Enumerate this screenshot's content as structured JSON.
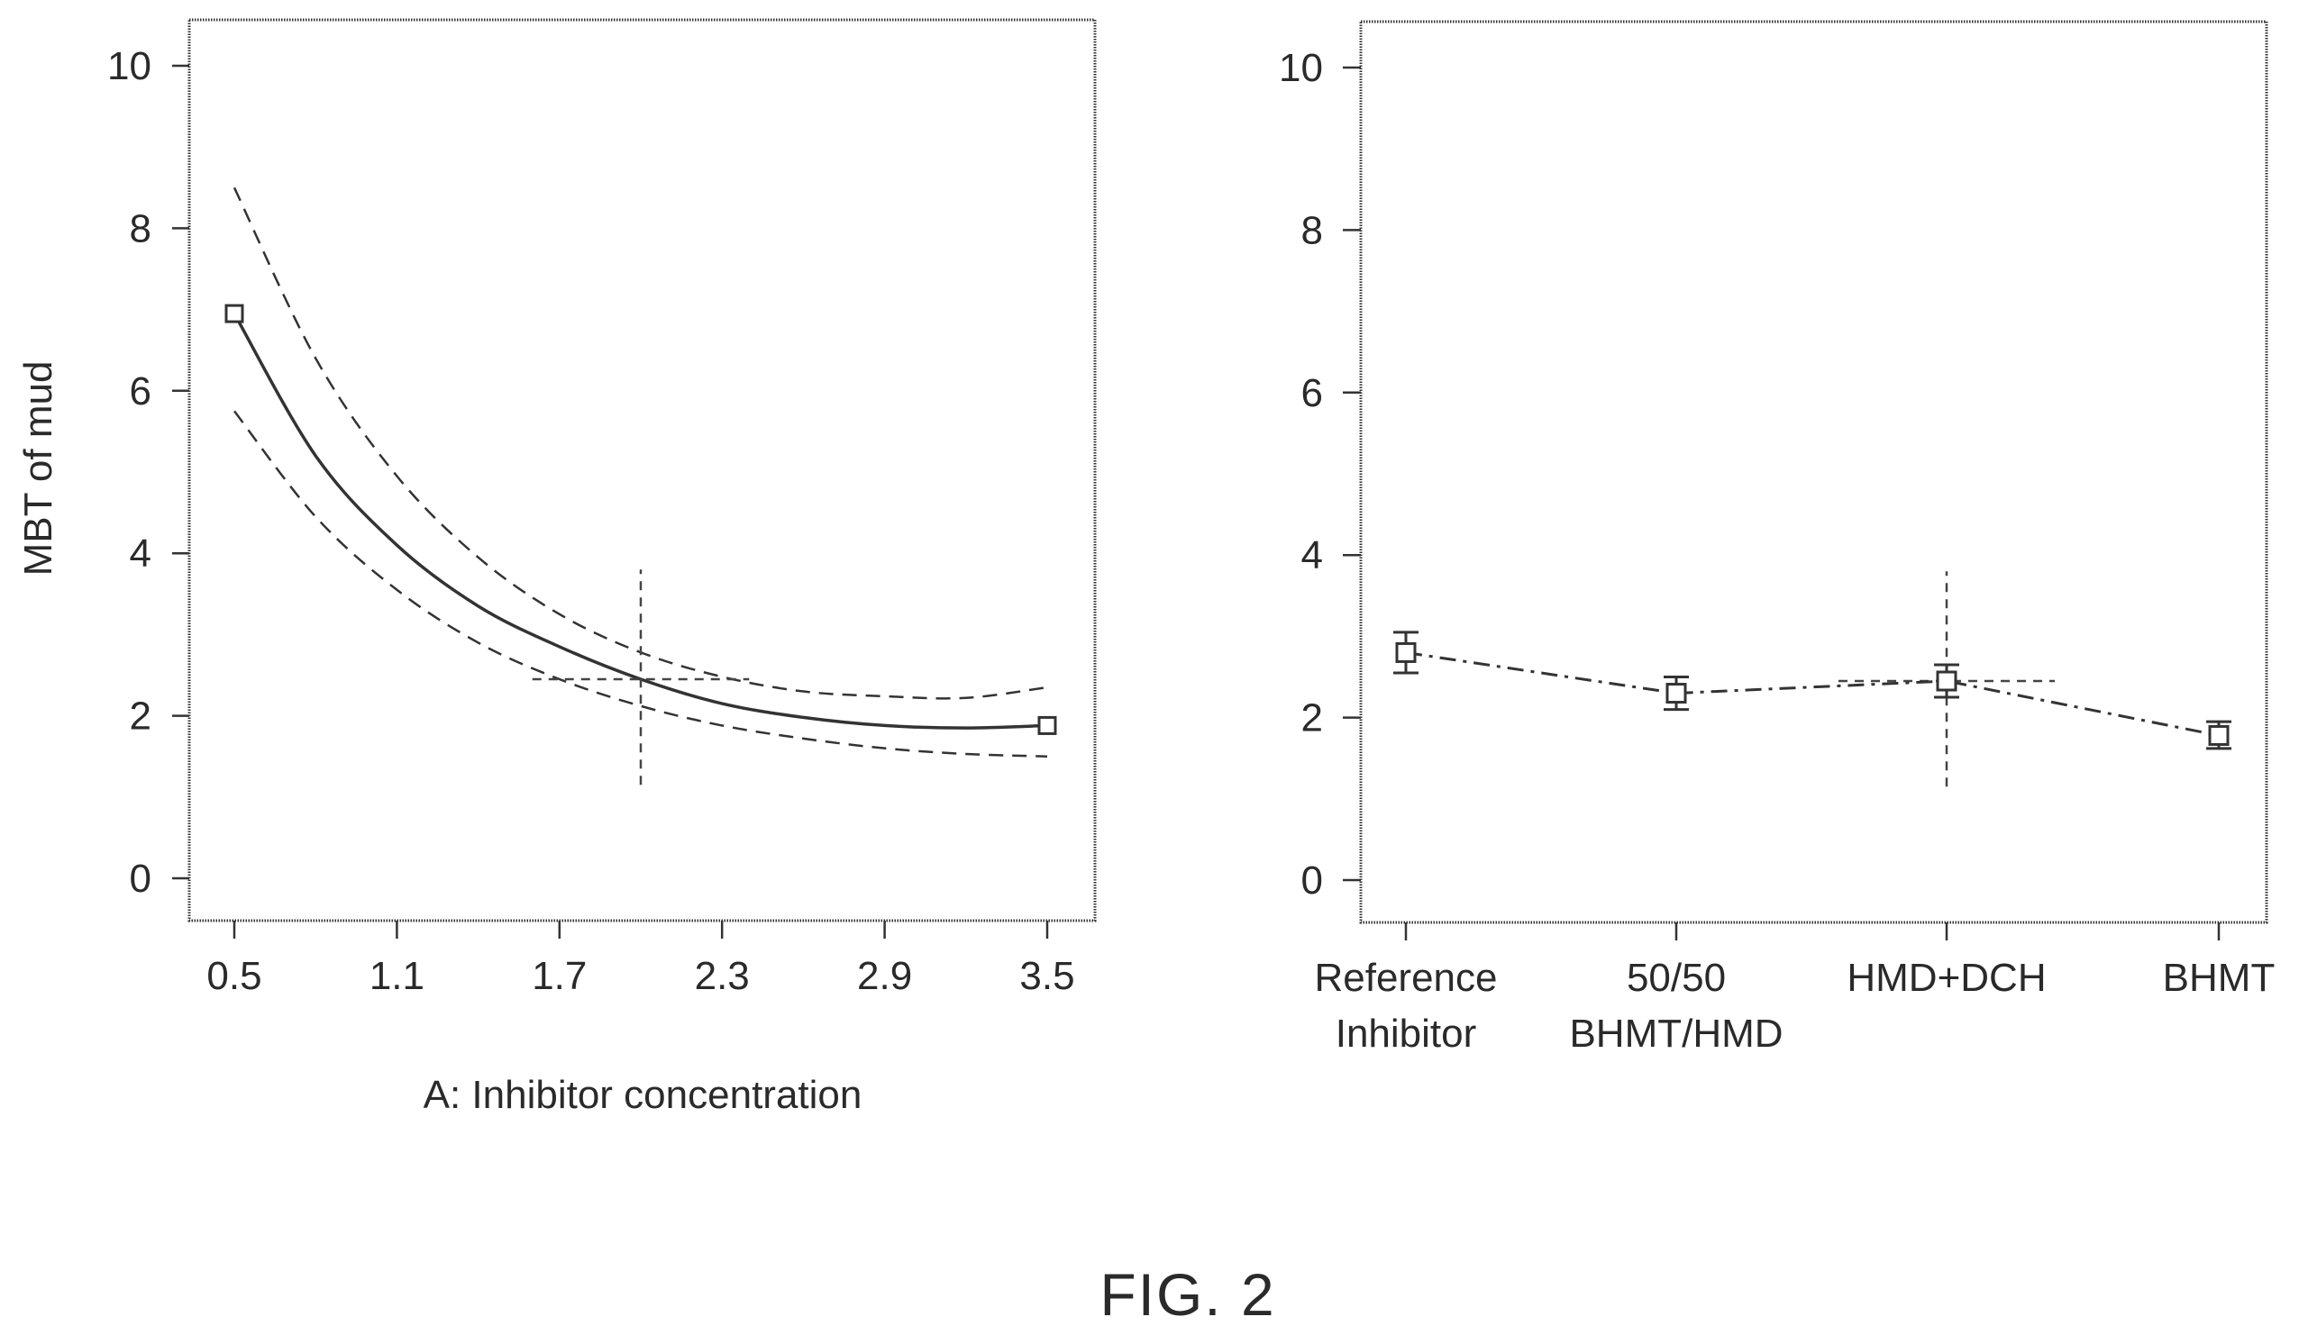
{
  "figure_label": "FIG. 2",
  "chart_data": [
    {
      "type": "line",
      "xlabel": "A: Inhibitor concentration",
      "ylabel": "MBT of mud",
      "xlim": [
        0.5,
        3.5
      ],
      "ylim": [
        0,
        10
      ],
      "x_ticks": [
        "0.5",
        "1.1",
        "1.7",
        "2.3",
        "2.9",
        "3.5"
      ],
      "y_ticks": [
        "0",
        "2",
        "4",
        "6",
        "8",
        "10"
      ],
      "points": [
        {
          "x": 0.5,
          "y": 6.95
        },
        {
          "x": 3.5,
          "y": 1.88
        }
      ],
      "series": [
        {
          "style": "solid",
          "x": [
            0.5,
            0.8,
            1.1,
            1.4,
            1.7,
            2.0,
            2.3,
            2.6,
            2.9,
            3.2,
            3.5
          ],
          "y": [
            6.95,
            5.2,
            4.1,
            3.35,
            2.85,
            2.45,
            2.15,
            1.98,
            1.88,
            1.85,
            1.88
          ]
        },
        {
          "style": "dashed",
          "x": [
            0.5,
            0.8,
            1.1,
            1.4,
            1.7,
            2.0,
            2.3,
            2.6,
            2.9,
            3.2,
            3.5
          ],
          "y": [
            8.5,
            6.4,
            4.95,
            3.95,
            3.25,
            2.78,
            2.48,
            2.3,
            2.24,
            2.22,
            2.35
          ]
        },
        {
          "style": "dashed",
          "x": [
            0.5,
            0.8,
            1.1,
            1.4,
            1.7,
            2.0,
            2.3,
            2.6,
            2.9,
            3.2,
            3.5
          ],
          "y": [
            5.75,
            4.45,
            3.55,
            2.9,
            2.45,
            2.12,
            1.88,
            1.72,
            1.6,
            1.53,
            1.5
          ]
        }
      ],
      "crosshair": {
        "x": 2.0,
        "y": 2.45,
        "y_range": [
          1.15,
          3.8
        ],
        "x_range": [
          1.6,
          2.4
        ]
      }
    },
    {
      "type": "line",
      "xlabel": "",
      "ylabel": "",
      "ylim": [
        0,
        10
      ],
      "y_ticks": [
        "0",
        "2",
        "4",
        "6",
        "8",
        "10"
      ],
      "categories": [
        {
          "line1": "Reference",
          "line2": "Inhibitor"
        },
        {
          "line1": "50/50",
          "line2": "BHMT/HMD"
        },
        {
          "line1": "HMD+DCH",
          "line2": ""
        },
        {
          "line1": "BHMT",
          "line2": ""
        }
      ],
      "values": [
        2.8,
        2.3,
        2.45,
        1.78
      ],
      "error_low": [
        2.55,
        2.1,
        2.25,
        1.62
      ],
      "error_high": [
        3.05,
        2.5,
        2.65,
        1.95
      ],
      "crosshair": {
        "category_index": 2,
        "y": 2.45,
        "y_range": [
          1.15,
          3.8
        ]
      }
    }
  ]
}
